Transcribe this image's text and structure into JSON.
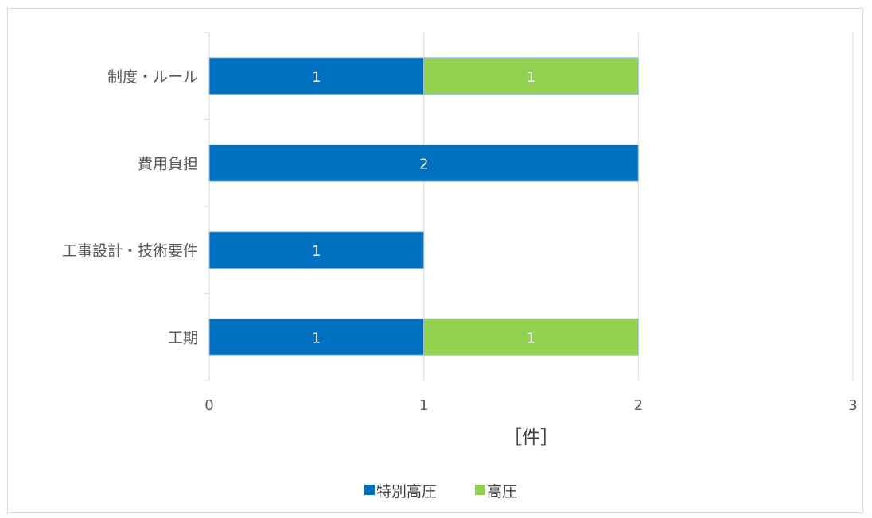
{
  "chart_data": {
    "type": "bar",
    "orientation": "horizontal",
    "stacked": true,
    "categories": [
      "制度・ルール",
      "費用負担",
      "工事設計・技術要件",
      "工期"
    ],
    "series": [
      {
        "name": "特別高圧",
        "values": [
          1,
          2,
          1,
          1
        ],
        "color": "#0070c0"
      },
      {
        "name": "高圧",
        "values": [
          1,
          0,
          0,
          1
        ],
        "color": "#92d050"
      }
    ],
    "xlabel": "［件］",
    "ylabel": "",
    "xlim": [
      0,
      3
    ],
    "xticks": [
      "0",
      "1",
      "2",
      "3"
    ],
    "grid": true,
    "legend_position": "bottom",
    "data_labels": true
  }
}
